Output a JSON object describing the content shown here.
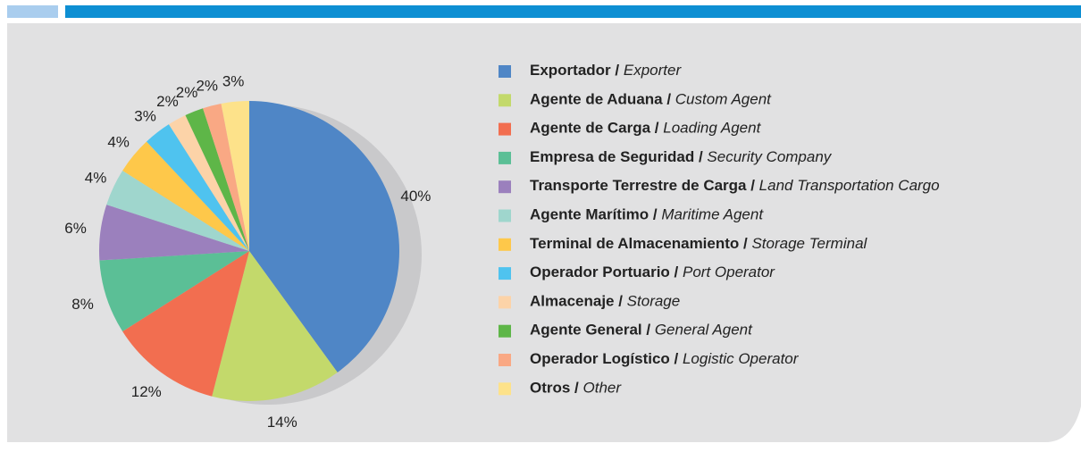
{
  "chart_data": {
    "type": "pie",
    "categories": [
      "Exportador / Exporter",
      "Agente de Aduana / Custom Agent",
      "Agente de Carga / Loading Agent",
      "Empresa de Seguridad / Security Company",
      "Transporte Terrestre de Carga / Land Transportation Cargo",
      "Agente Marítimo / Maritime Agent",
      "Terminal de Almacenamiento / Storage Terminal",
      "Operador Portuario / Port Operator",
      "Almacenaje / Storage",
      "Agente General / General Agent",
      "Operador Logístico / Logistic Operator",
      "Otros / Other"
    ],
    "values": [
      40,
      14,
      12,
      8,
      6,
      4,
      4,
      3,
      2,
      2,
      2,
      3
    ],
    "value_labels": [
      "40%",
      "14%",
      "12%",
      "8%",
      "6%",
      "4%",
      "4%",
      "3%",
      "2%",
      "2%",
      "2%",
      "3%"
    ],
    "colors": [
      "#4f86c6",
      "#c3d96b",
      "#f26e50",
      "#5bbf96",
      "#9b80bd",
      "#9fd6cd",
      "#fec84a",
      "#4fc3ef",
      "#fcd3a8",
      "#5eb648",
      "#f9a884",
      "#fde28a"
    ]
  }
}
